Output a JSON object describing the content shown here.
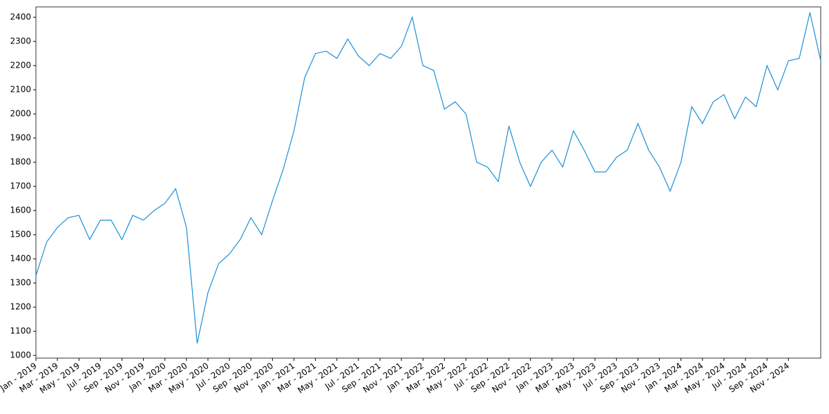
{
  "chart_data": {
    "type": "line",
    "x": [
      "2019-01",
      "2019-02",
      "2019-03",
      "2019-04",
      "2019-05",
      "2019-06",
      "2019-07",
      "2019-08",
      "2019-09",
      "2019-10",
      "2019-11",
      "2019-12",
      "2020-01",
      "2020-02",
      "2020-03",
      "2020-04",
      "2020-05",
      "2020-06",
      "2020-07",
      "2020-08",
      "2020-09",
      "2020-10",
      "2020-11",
      "2020-12",
      "2021-01",
      "2021-02",
      "2021-03",
      "2021-04",
      "2021-05",
      "2021-06",
      "2021-07",
      "2021-08",
      "2021-09",
      "2021-10",
      "2021-11",
      "2021-12",
      "2022-01",
      "2022-02",
      "2022-03",
      "2022-04",
      "2022-05",
      "2022-06",
      "2022-07",
      "2022-08",
      "2022-09",
      "2022-10",
      "2022-11",
      "2022-12",
      "2023-01",
      "2023-02",
      "2023-03",
      "2023-04",
      "2023-05",
      "2023-06",
      "2023-07",
      "2023-08",
      "2023-09",
      "2023-10",
      "2023-11",
      "2023-12",
      "2024-01",
      "2024-02",
      "2024-03",
      "2024-04",
      "2024-05",
      "2024-06",
      "2024-07",
      "2024-08",
      "2024-09",
      "2024-10",
      "2024-11",
      "2024-12",
      "2025-01",
      "2025-02"
    ],
    "series": [
      {
        "color": "#1a8fd6",
        "values": [
          1330,
          1470,
          1530,
          1570,
          1580,
          1480,
          1560,
          1560,
          1480,
          1580,
          1560,
          1600,
          1630,
          1690,
          1530,
          1050,
          1260,
          1380,
          1420,
          1480,
          1570,
          1500,
          1640,
          1770,
          1930,
          2150,
          2250,
          2260,
          2230,
          2310,
          2240,
          2200,
          2250,
          2230,
          2280,
          2400,
          2200,
          2180,
          2020,
          2050,
          2000,
          1800,
          1780,
          1720,
          1950,
          1800,
          1700,
          1800,
          1850,
          1780,
          1930,
          1850,
          1760,
          1760,
          1820,
          1850,
          1960,
          1850,
          1780,
          1680,
          1800,
          2030,
          1960,
          2050,
          2080,
          1980,
          2070,
          2030,
          2200,
          2100,
          2220,
          2230,
          2420,
          2220
        ]
      }
    ],
    "xlim": [
      "2019-01",
      "2025-02"
    ],
    "xticks": [
      {
        "value": "2019-01",
        "label": "Jan - 2019"
      },
      {
        "value": "2019-03",
        "label": "Mar - 2019"
      },
      {
        "value": "2019-05",
        "label": "May - 2019"
      },
      {
        "value": "2019-07",
        "label": "Jul - 2019"
      },
      {
        "value": "2019-09",
        "label": "Sep - 2019"
      },
      {
        "value": "2019-11",
        "label": "Nov - 2019"
      },
      {
        "value": "2020-01",
        "label": "Jan - 2020"
      },
      {
        "value": "2020-03",
        "label": "Mar - 2020"
      },
      {
        "value": "2020-05",
        "label": "May - 2020"
      },
      {
        "value": "2020-07",
        "label": "Jul - 2020"
      },
      {
        "value": "2020-09",
        "label": "Sep - 2020"
      },
      {
        "value": "2020-11",
        "label": "Nov - 2020"
      },
      {
        "value": "2021-01",
        "label": "Jan - 2021"
      },
      {
        "value": "2021-03",
        "label": "Mar - 2021"
      },
      {
        "value": "2021-05",
        "label": "May - 2021"
      },
      {
        "value": "2021-07",
        "label": "Jul - 2021"
      },
      {
        "value": "2021-09",
        "label": "Sep - 2021"
      },
      {
        "value": "2021-11",
        "label": "Nov - 2021"
      },
      {
        "value": "2022-01",
        "label": "Jan - 2022"
      },
      {
        "value": "2022-03",
        "label": "Mar - 2022"
      },
      {
        "value": "2022-05",
        "label": "May - 2022"
      },
      {
        "value": "2022-07",
        "label": "Jul - 2022"
      },
      {
        "value": "2022-09",
        "label": "Sep - 2022"
      },
      {
        "value": "2022-11",
        "label": "Nov - 2022"
      },
      {
        "value": "2023-01",
        "label": "Jan - 2023"
      },
      {
        "value": "2023-03",
        "label": "Mar - 2023"
      },
      {
        "value": "2023-05",
        "label": "May - 2023"
      },
      {
        "value": "2023-07",
        "label": "Jul - 2023"
      },
      {
        "value": "2023-09",
        "label": "Sep - 2023"
      },
      {
        "value": "2023-11",
        "label": "Nov - 2023"
      },
      {
        "value": "2024-01",
        "label": "Jan - 2024"
      },
      {
        "value": "2024-03",
        "label": "Mar - 2024"
      },
      {
        "value": "2024-05",
        "label": "May - 2024"
      },
      {
        "value": "2024-07",
        "label": "Jul - 2024"
      },
      {
        "value": "2024-09",
        "label": "Sep - 2024"
      },
      {
        "value": "2024-11",
        "label": "Nov - 2024"
      }
    ],
    "ylim": [
      989,
      2443
    ],
    "yticks": [
      1000,
      1100,
      1200,
      1300,
      1400,
      1500,
      1600,
      1700,
      1800,
      1900,
      2000,
      2100,
      2200,
      2300,
      2400
    ],
    "grid": false
  }
}
